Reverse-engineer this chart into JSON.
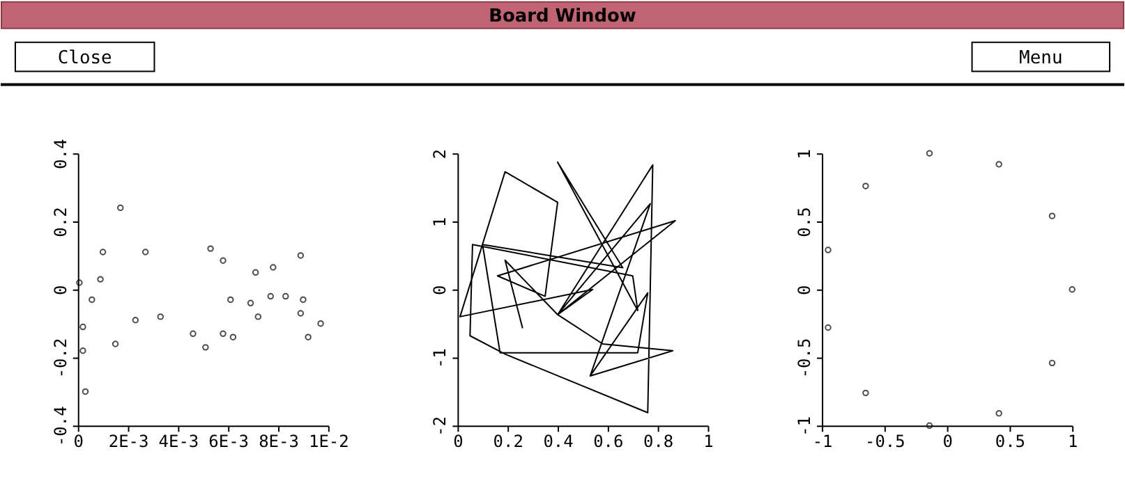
{
  "chart_data": [
    {
      "type": "other",
      "title": "Board Window",
      "annotations": [
        "Close",
        "Menu"
      ]
    },
    {
      "type": "scatter",
      "marker": "circle",
      "xlim": [
        0,
        0.01
      ],
      "ylim": [
        -0.4,
        0.4
      ],
      "xticks": [
        0,
        {
          "value": 0.002,
          "label": "2E-3"
        },
        {
          "value": 0.004,
          "label": "4E-3"
        },
        {
          "value": 0.006,
          "label": "6E-3"
        },
        {
          "value": 0.008,
          "label": "8E-3"
        },
        {
          "value": 0.01,
          "label": "1E-2"
        }
      ],
      "yticks": [
        -0.4,
        -0.2,
        0,
        0.2,
        0.4
      ],
      "x": [
        6e-05,
        0.0002,
        0.0002,
        0.0003,
        0.00056,
        0.0009,
        0.001,
        0.0015,
        0.0017,
        0.0023,
        0.0027,
        0.0033,
        0.0046,
        0.0051,
        0.0053,
        0.0058,
        0.0058,
        0.0061,
        0.0062,
        0.0069,
        0.0071,
        0.0072,
        0.0077,
        0.0078,
        0.0083,
        0.0089,
        0.0089,
        0.009,
        0.0092,
        0.0097
      ],
      "series": [
        {
          "color": "#000000",
          "values": [
            0.02,
            -0.11,
            -0.18,
            -0.3,
            -0.03,
            0.03,
            0.11,
            -0.16,
            0.24,
            -0.09,
            0.11,
            -0.08,
            -0.13,
            -0.17,
            0.12,
            -0.13,
            0.085,
            -0.03,
            -0.14,
            -0.04,
            0.05,
            -0.08,
            -0.02,
            0.065,
            -0.02,
            -0.07,
            0.1,
            -0.03,
            -0.14,
            -0.1
          ]
        }
      ]
    },
    {
      "type": "line",
      "marker": "none",
      "line_style": "solid",
      "xlim": [
        0,
        1
      ],
      "ylim": [
        -2,
        2
      ],
      "xticks": [
        0,
        0.2,
        0.4,
        0.6,
        0.8,
        1
      ],
      "yticks": [
        -2,
        -1,
        0,
        1,
        2
      ],
      "x": [
        0.26,
        0.19,
        0.4,
        0.54,
        0.01,
        0.19,
        0.4,
        0.35,
        0.16,
        0.87,
        0.4,
        0.78,
        0.76,
        0.19,
        0.05,
        0.06,
        0.7,
        0.72,
        0.4,
        0.66,
        0.1,
        0.17,
        0.72,
        0.76,
        0.53,
        0.77,
        0.4,
        0.58,
        0.86,
        0.53
      ],
      "series": [
        {
          "color": "#000000",
          "values": [
            -0.57,
            0.43,
            -0.37,
            0,
            -0.4,
            1.73,
            1.28,
            -0.1,
            0.2,
            1.01,
            -0.37,
            1.83,
            -1.81,
            -0.95,
            -0.68,
            0.66,
            0.2,
            -0.31,
            1.87,
            0.32,
            0.66,
            -0.93,
            -0.93,
            -0.05,
            -1.27,
            1.26,
            -0.37,
            -0.8,
            -0.9,
            -1.27
          ]
        }
      ]
    },
    {
      "type": "scatter",
      "marker": "circle",
      "xlim": [
        -1,
        1
      ],
      "ylim": [
        -1,
        1
      ],
      "xticks": [
        -1,
        -0.5,
        0,
        0.5,
        1
      ],
      "yticks": [
        -1,
        -0.5,
        0,
        0.5,
        1
      ],
      "x": [
        -0.14,
        0.415,
        -0.65,
        0.84,
        -0.95,
        1,
        -0.95,
        0.84,
        -0.65,
        0.415,
        -0.14
      ],
      "series": [
        {
          "color": "#000000",
          "values": [
            1,
            0.92,
            0.76,
            0.54,
            0.29,
            0,
            -0.28,
            -0.54,
            -0.76,
            -0.91,
            -1
          ]
        }
      ]
    }
  ]
}
